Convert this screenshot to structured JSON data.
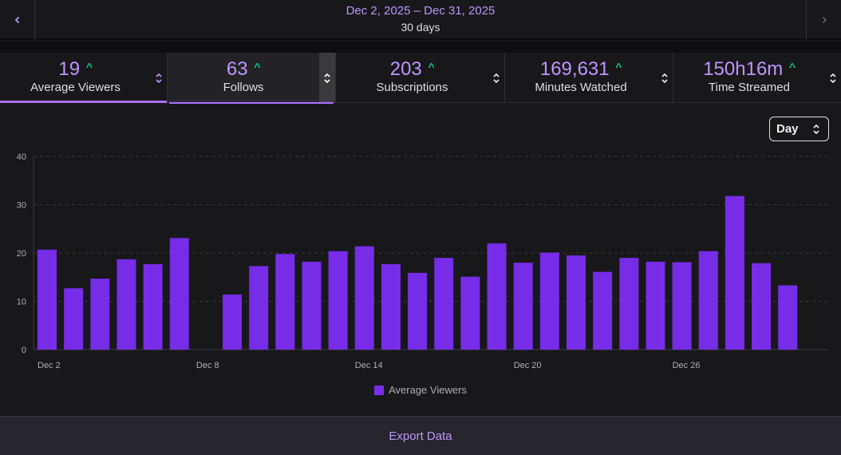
{
  "header": {
    "date_range": "Dec 2, 2025 – Dec 31, 2025",
    "duration": "30 days",
    "prev_icon": "chevron-left-icon",
    "next_icon": "chevron-right-icon"
  },
  "metrics": [
    {
      "id": "average-viewers",
      "value": "19",
      "label": "Average Viewers",
      "trend": "up"
    },
    {
      "id": "follows",
      "value": "63",
      "label": "Follows",
      "trend": "up"
    },
    {
      "id": "subscriptions",
      "value": "203",
      "label": "Subscriptions",
      "trend": "up"
    },
    {
      "id": "minutes-watched",
      "value": "169,631",
      "label": "Minutes Watched",
      "trend": "up"
    },
    {
      "id": "time-streamed",
      "value": "150h16m",
      "label": "Time Streamed",
      "trend": "up"
    }
  ],
  "interval_select": {
    "value": "Day"
  },
  "colors": {
    "accent": "#bf94ff",
    "bar": "#772ce8",
    "up": "#00f593"
  },
  "chart_data": {
    "type": "bar",
    "categories": [
      "Dec 2",
      "Dec 3",
      "Dec 4",
      "Dec 5",
      "Dec 6",
      "Dec 7",
      "Dec 8",
      "Dec 9",
      "Dec 10",
      "Dec 11",
      "Dec 12",
      "Dec 13",
      "Dec 14",
      "Dec 15",
      "Dec 16",
      "Dec 17",
      "Dec 18",
      "Dec 19",
      "Dec 20",
      "Dec 21",
      "Dec 22",
      "Dec 23",
      "Dec 24",
      "Dec 25",
      "Dec 26",
      "Dec 27",
      "Dec 28",
      "Dec 29",
      "Dec 30"
    ],
    "x_tick_labels": [
      "Dec 2",
      "Dec 8",
      "Dec 14",
      "Dec 20",
      "Dec 26"
    ],
    "series": [
      {
        "name": "Average Viewers",
        "values": [
          20.7,
          12.7,
          14.7,
          18.7,
          17.7,
          23.1,
          0,
          11.4,
          17.3,
          19.8,
          18.2,
          20.4,
          21.4,
          17.7,
          15.9,
          19,
          15.1,
          22,
          18,
          20.1,
          19.5,
          16.1,
          19,
          18.2,
          18.1,
          20.4,
          31.8,
          17.9,
          13.3
        ]
      }
    ],
    "ylim": [
      0,
      40
    ],
    "y_ticks": [
      0,
      10,
      20,
      30,
      40
    ],
    "grid": true,
    "legend": "bottom"
  },
  "footer": {
    "export_label": "Export Data"
  }
}
